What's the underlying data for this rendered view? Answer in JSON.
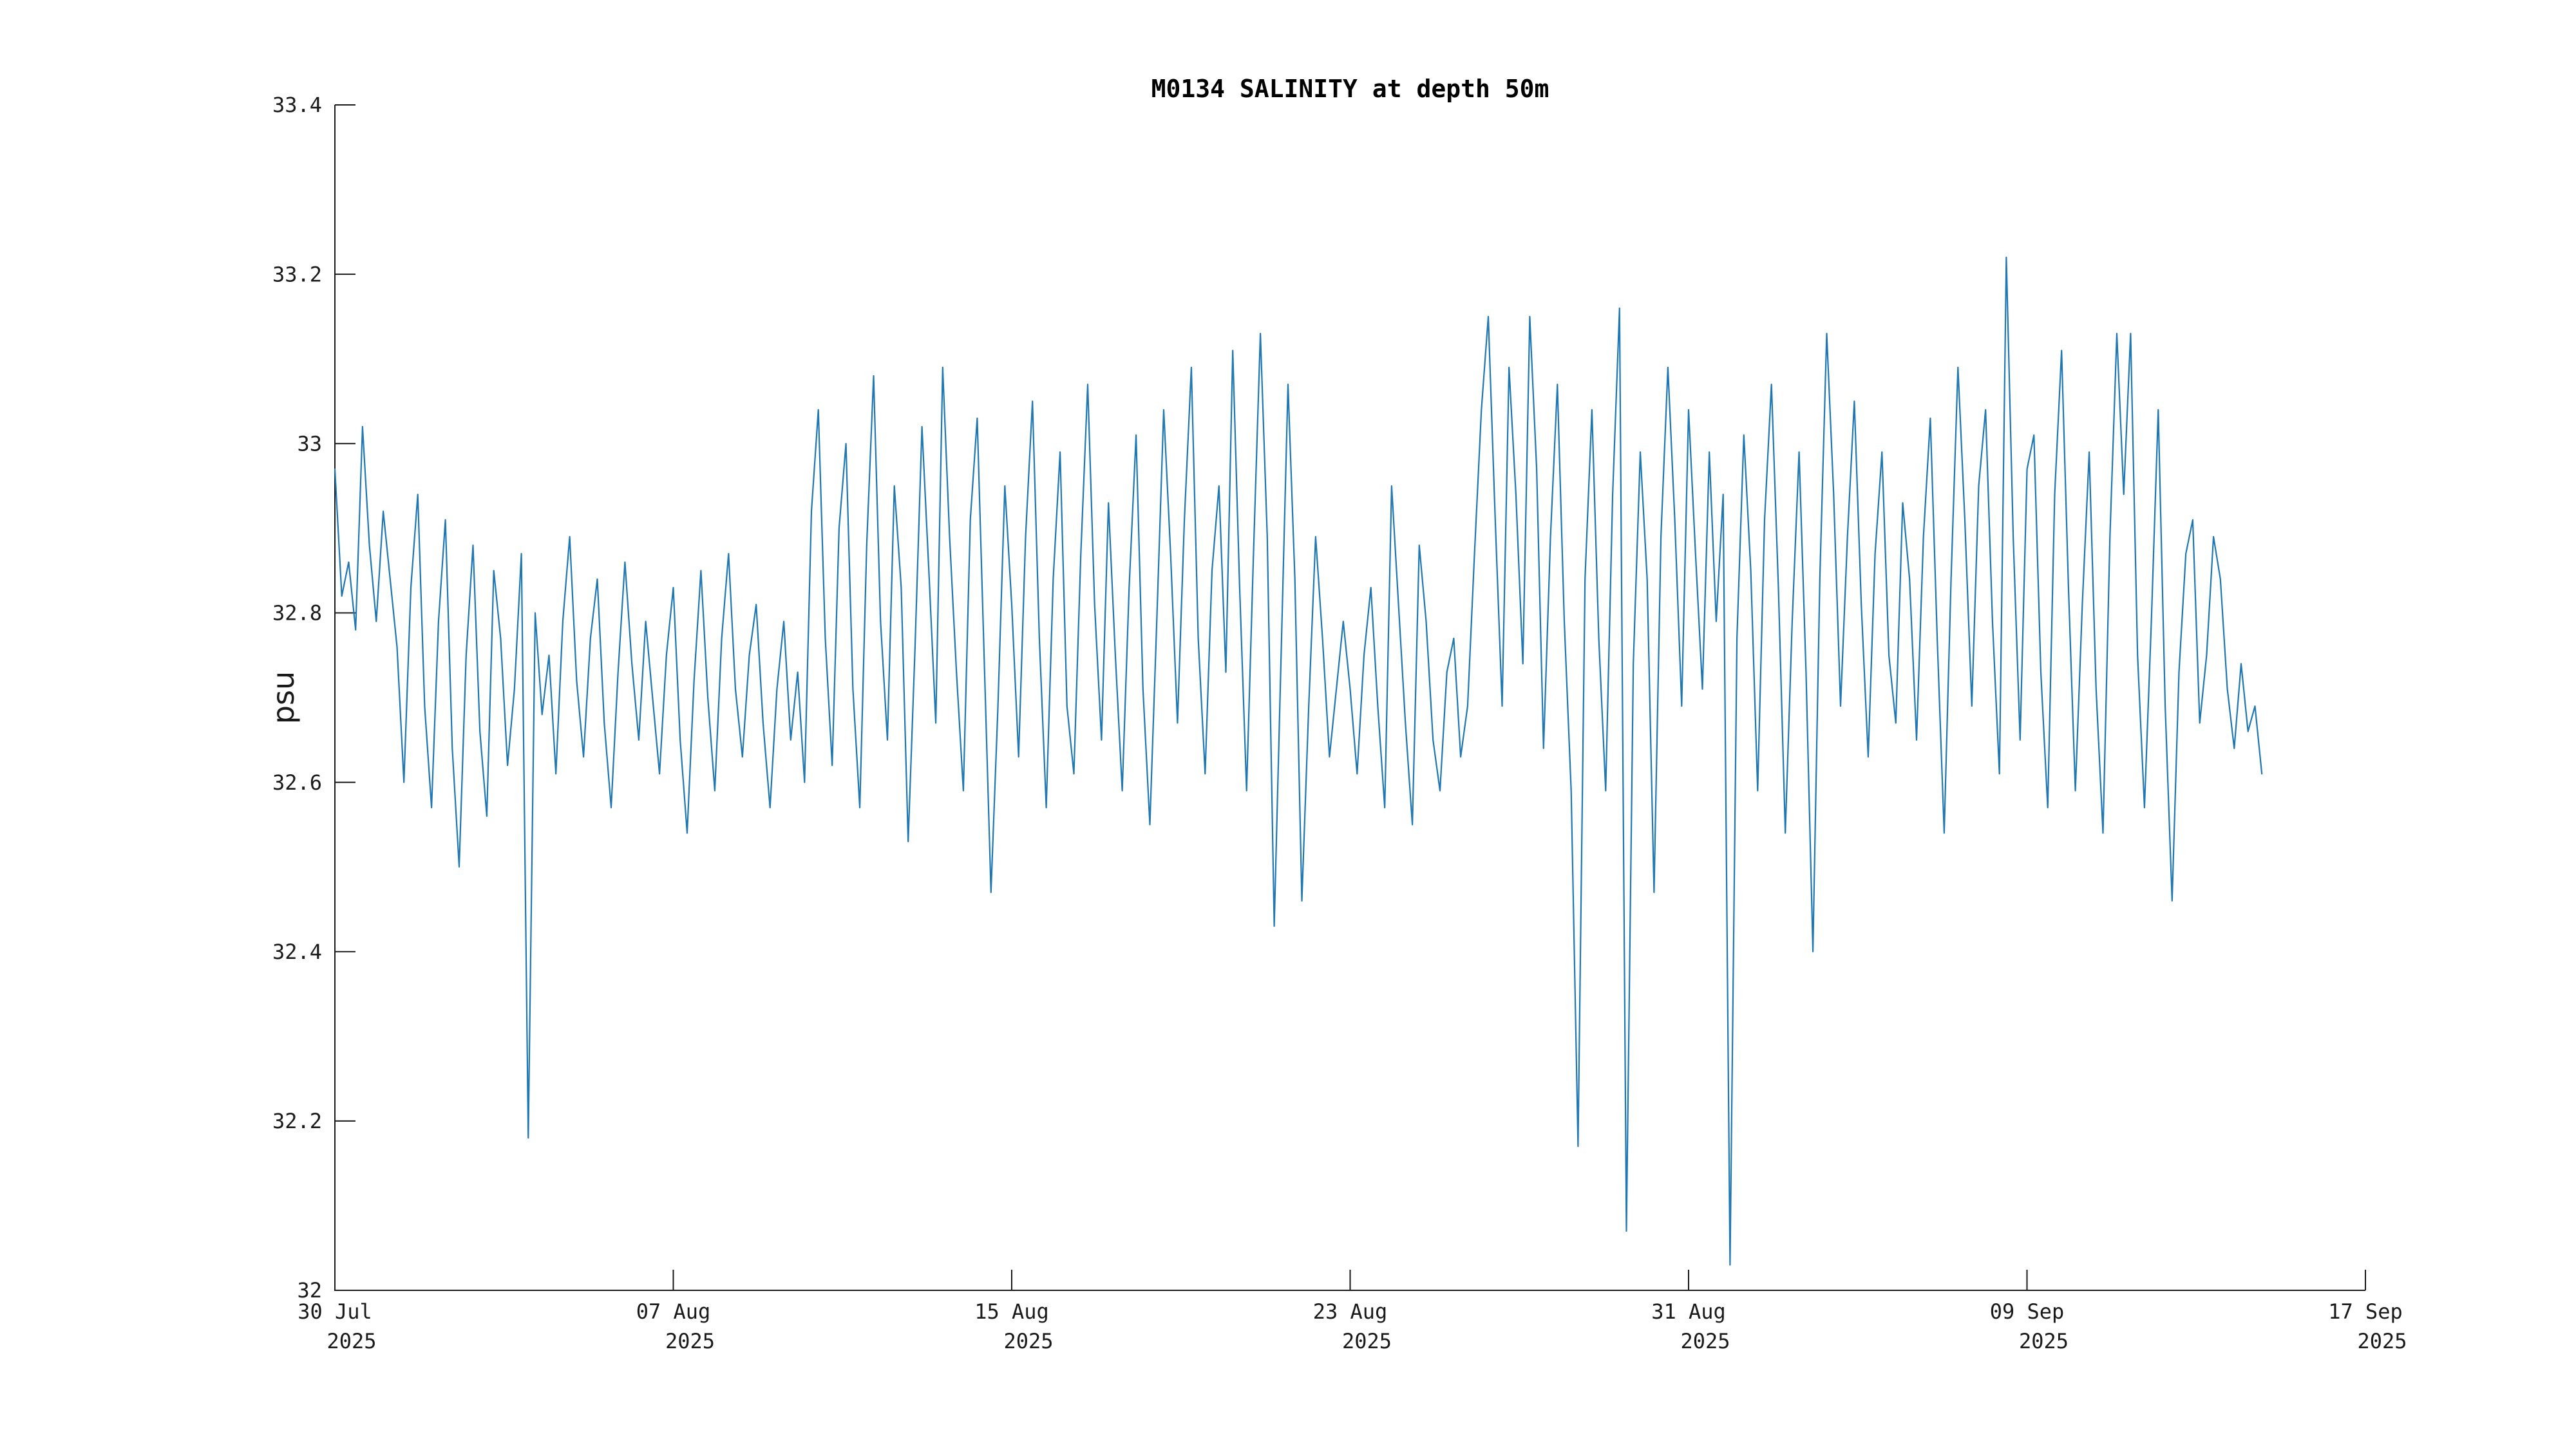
{
  "chart_data": {
    "type": "line",
    "title": "M0134 SALINITY at depth 50m",
    "xlabel": "",
    "ylabel": "psu",
    "ylim": [
      32,
      33.4
    ],
    "ytick_labels": [
      "32",
      "32.2",
      "32.4",
      "32.6",
      "32.8",
      "33",
      "33.2",
      "33.4"
    ],
    "yticks": [
      32,
      32.2,
      32.4,
      32.6,
      32.8,
      33,
      33.2,
      33.4
    ],
    "xticks": [
      {
        "line1": "30 Jul",
        "line2": "2025"
      },
      {
        "line1": "07 Aug",
        "line2": "2025"
      },
      {
        "line1": "15 Aug",
        "line2": "2025"
      },
      {
        "line1": "23 Aug",
        "line2": "2025"
      },
      {
        "line1": "31 Aug",
        "line2": "2025"
      },
      {
        "line1": "09 Sep",
        "line2": "2025"
      },
      {
        "line1": "17 Sep",
        "line2": "2025"
      }
    ],
    "x_start_date": "2025-07-30",
    "x_axis_end_date": "2025-09-17",
    "data_end_date": "2025-09-14",
    "grid": false,
    "legend": "none",
    "spines": [
      "left",
      "bottom"
    ],
    "tick_direction": "in",
    "line_color": "#1f77b4",
    "axis_color": "#1a1a1a",
    "data_span_fraction_of_axis": 0.949,
    "series": [
      {
        "name": "salinity_psu",
        "sample_interval_hours": 4,
        "values": [
          32.97,
          32.82,
          32.86,
          32.78,
          33.02,
          32.88,
          32.79,
          32.92,
          32.84,
          32.76,
          32.6,
          32.83,
          32.94,
          32.69,
          32.57,
          32.79,
          32.91,
          32.64,
          32.5,
          32.75,
          32.88,
          32.66,
          32.56,
          32.85,
          32.77,
          32.62,
          32.71,
          32.87,
          32.18,
          32.8,
          32.68,
          32.75,
          32.61,
          32.79,
          32.89,
          32.72,
          32.63,
          32.77,
          32.84,
          32.67,
          32.57,
          32.73,
          32.86,
          32.74,
          32.65,
          32.79,
          32.7,
          32.61,
          32.75,
          32.83,
          32.65,
          32.54,
          32.72,
          32.85,
          32.7,
          32.59,
          32.77,
          32.87,
          32.71,
          32.63,
          32.75,
          32.81,
          32.67,
          32.57,
          32.71,
          32.79,
          32.65,
          32.73,
          32.6,
          32.92,
          33.04,
          32.77,
          32.62,
          32.9,
          33.0,
          32.71,
          32.57,
          32.88,
          33.08,
          32.79,
          32.65,
          32.95,
          32.83,
          32.53,
          32.76,
          33.02,
          32.85,
          32.67,
          33.09,
          32.89,
          32.73,
          32.59,
          32.91,
          33.03,
          32.75,
          32.47,
          32.69,
          32.95,
          32.81,
          32.63,
          32.89,
          33.05,
          32.77,
          32.57,
          32.84,
          32.99,
          32.69,
          32.61,
          32.87,
          33.07,
          32.81,
          32.65,
          32.93,
          32.75,
          32.59,
          32.83,
          33.01,
          32.71,
          32.55,
          32.79,
          33.04,
          32.87,
          32.67,
          32.91,
          33.09,
          32.77,
          32.61,
          32.85,
          32.95,
          32.73,
          33.11,
          32.83,
          32.59,
          32.87,
          33.13,
          32.89,
          32.43,
          32.75,
          33.07,
          32.84,
          32.46,
          32.69,
          32.89,
          32.77,
          32.63,
          32.71,
          32.79,
          32.71,
          32.61,
          32.75,
          32.83,
          32.69,
          32.57,
          32.95,
          32.81,
          32.67,
          32.55,
          32.88,
          32.79,
          32.65,
          32.59,
          32.73,
          32.77,
          32.63,
          32.69,
          32.87,
          33.04,
          33.15,
          32.91,
          32.69,
          33.09,
          32.94,
          32.74,
          33.15,
          32.97,
          32.64,
          32.89,
          33.07,
          32.79,
          32.59,
          32.17,
          32.84,
          33.04,
          32.77,
          32.59,
          32.94,
          33.16,
          32.07,
          32.74,
          32.99,
          32.84,
          32.47,
          32.89,
          33.09,
          32.91,
          32.69,
          33.04,
          32.87,
          32.71,
          32.99,
          32.79,
          32.94,
          32.03,
          32.77,
          33.01,
          32.85,
          32.59,
          32.91,
          33.07,
          32.83,
          32.54,
          32.79,
          32.99,
          32.73,
          32.4,
          32.84,
          33.13,
          32.94,
          32.69,
          32.89,
          33.05,
          32.81,
          32.63,
          32.87,
          32.99,
          32.75,
          32.67,
          32.93,
          32.84,
          32.65,
          32.89,
          33.03,
          32.77,
          32.54,
          32.84,
          33.09,
          32.91,
          32.69,
          32.95,
          33.04,
          32.79,
          32.61,
          33.22,
          32.89,
          32.65,
          32.97,
          33.01,
          32.73,
          32.57,
          32.94,
          33.11,
          32.83,
          32.59,
          32.81,
          32.99,
          32.71,
          32.54,
          32.89,
          33.13,
          32.94,
          33.13,
          32.75,
          32.57,
          32.79,
          33.04,
          32.69,
          32.46,
          32.73,
          32.87,
          32.91,
          32.67,
          32.75,
          32.89,
          32.84,
          32.71,
          32.64,
          32.74,
          32.66,
          32.69,
          32.61
        ]
      }
    ]
  }
}
